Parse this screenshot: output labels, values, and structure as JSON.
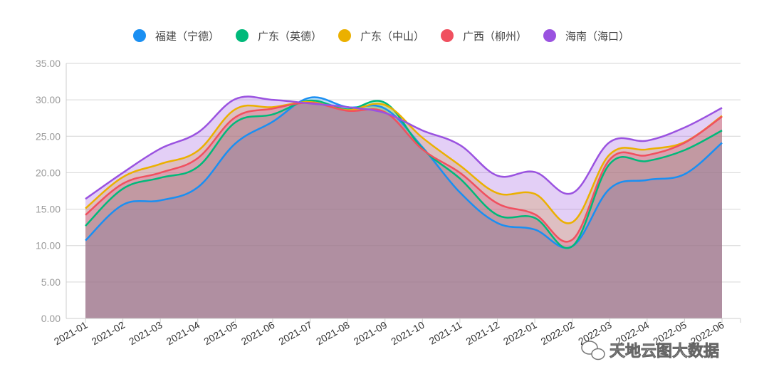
{
  "chart_data": {
    "type": "area",
    "title": "",
    "xlabel": "",
    "ylabel": "",
    "ylim": [
      0,
      35
    ],
    "yticks": [
      "0.00",
      "5.00",
      "10.00",
      "15.00",
      "20.00",
      "25.00",
      "30.00",
      "35.00"
    ],
    "grid": true,
    "legend_position": "top-center",
    "categories": [
      "2021-01",
      "2021-02",
      "2021-03",
      "2021-04",
      "2021-05",
      "2021-06",
      "2021-07",
      "2021-08",
      "2021-09",
      "2021-10",
      "2021-11",
      "2021-12",
      "2022-01",
      "2022-02",
      "2022-03",
      "2022-04",
      "2022-05",
      "2022-06"
    ],
    "series": [
      {
        "name": "福建（宁德）",
        "color": "#1a8ff2",
        "values": [
          10.7,
          15.6,
          16.2,
          18.0,
          24.0,
          27.0,
          30.3,
          29.0,
          28.8,
          23.5,
          17.3,
          13.1,
          12.2,
          9.9,
          17.8,
          19.0,
          19.8,
          24.1
        ]
      },
      {
        "name": "广东（英德）",
        "color": "#00b97a",
        "values": [
          12.7,
          17.8,
          19.3,
          20.8,
          26.9,
          28.0,
          29.9,
          28.7,
          29.6,
          23.3,
          19.2,
          14.2,
          13.8,
          9.9,
          21.2,
          21.6,
          23.1,
          25.8
        ]
      },
      {
        "name": "广东（中山）",
        "color": "#ebb000",
        "values": [
          15.1,
          19.4,
          21.2,
          23.0,
          28.7,
          29.0,
          29.7,
          28.6,
          29.3,
          24.8,
          21.0,
          17.2,
          17.1,
          13.2,
          22.5,
          23.2,
          24.2,
          27.8
        ]
      },
      {
        "name": "广西（柳州）",
        "color": "#f0505f",
        "values": [
          14.2,
          18.5,
          20.0,
          22.0,
          27.6,
          28.8,
          29.6,
          28.5,
          28.3,
          23.2,
          20.0,
          15.8,
          14.3,
          10.8,
          21.8,
          22.4,
          24.1,
          27.7
        ]
      },
      {
        "name": "海南（海口）",
        "color": "#9a52e0",
        "values": [
          16.4,
          20.0,
          23.3,
          25.5,
          30.1,
          30.0,
          29.5,
          29.0,
          28.2,
          25.8,
          23.8,
          19.6,
          20.1,
          17.2,
          24.2,
          24.4,
          26.2,
          28.9
        ]
      }
    ]
  },
  "watermark": "天地云图大数据"
}
